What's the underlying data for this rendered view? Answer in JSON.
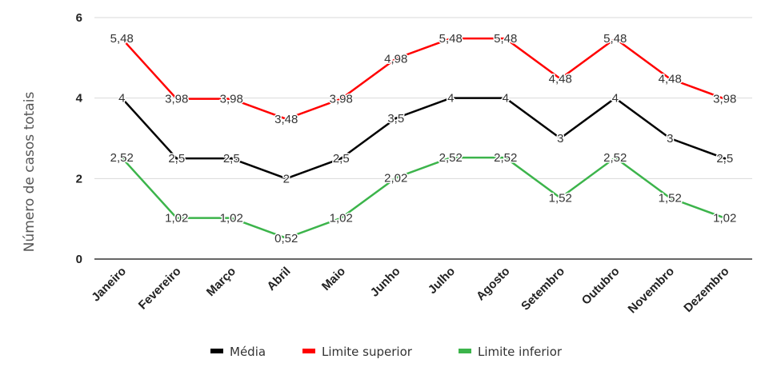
{
  "chart_data": {
    "type": "line",
    "title": "",
    "xlabel": "",
    "ylabel": "Número de casos totais",
    "ylim": [
      0,
      6
    ],
    "yticks": [
      0,
      2,
      4,
      6
    ],
    "grid": true,
    "legend_position": "bottom",
    "categories": [
      "Janeiro",
      "Fevereiro",
      "Março",
      "Abril",
      "Maio",
      "Junho",
      "Julho",
      "Agosto",
      "Setembro",
      "Outubro",
      "Novembro",
      "Dezembro"
    ],
    "series": [
      {
        "name": "Média",
        "color": "#000000",
        "values": [
          4,
          2.5,
          2.5,
          2,
          2.5,
          3.5,
          4,
          4,
          3,
          4,
          3,
          2.5
        ],
        "labels": [
          "4",
          "2,5",
          "2,5",
          "2",
          "2,5",
          "3,5",
          "4",
          "4",
          "3",
          "4",
          "3",
          "2,5"
        ]
      },
      {
        "name": "Limite superior",
        "color": "#ff0000",
        "values": [
          5.48,
          3.98,
          3.98,
          3.48,
          3.98,
          4.98,
          5.48,
          5.48,
          4.48,
          5.48,
          4.48,
          3.98
        ],
        "labels": [
          "5,48",
          "3,98",
          "3,98",
          "3,48",
          "3,98",
          "4,98",
          "5,48",
          "5,48",
          "4,48",
          "5,48",
          "4,48",
          "3,98"
        ]
      },
      {
        "name": "Limite inferior",
        "color": "#3cb44b",
        "values": [
          2.52,
          1.02,
          1.02,
          0.52,
          1.02,
          2.02,
          2.52,
          2.52,
          1.52,
          2.52,
          1.52,
          1.02
        ],
        "labels": [
          "2,52",
          "1,02",
          "1,02",
          "0,52",
          "1,02",
          "2,02",
          "2,52",
          "2,52",
          "1,52",
          "2,52",
          "1,52",
          "1,02"
        ]
      }
    ]
  }
}
